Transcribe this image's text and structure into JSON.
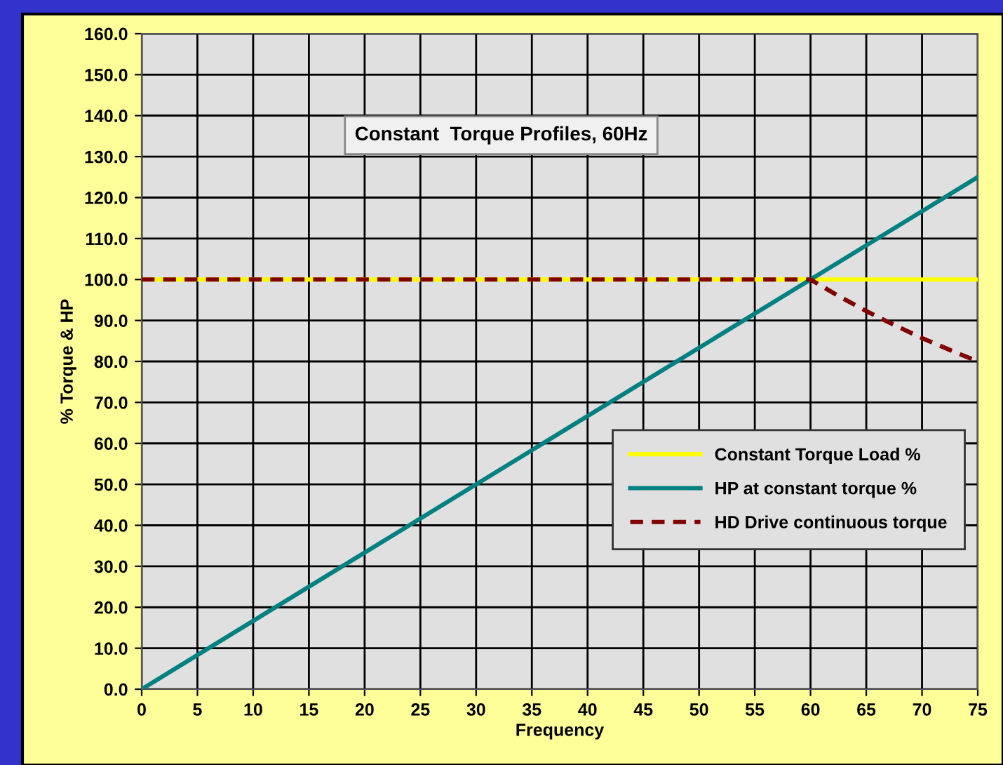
{
  "chart_data": {
    "type": "line",
    "title": "Constant  Torque Profiles, 60Hz",
    "xlabel": "Frequency",
    "ylabel": "% Torque & HP",
    "series": [
      {
        "name": "Constant Torque Load %",
        "color": "#ffff00",
        "x": [
          0,
          75
        ],
        "values": [
          100,
          100
        ],
        "line_style": "solid"
      },
      {
        "name": "HP at constant torque %",
        "color": "#008080",
        "x": [
          0,
          75
        ],
        "values": [
          0,
          125
        ],
        "line_style": "solid"
      },
      {
        "name": "HD Drive continuous torque",
        "color": "#800000",
        "x": [
          0,
          60,
          62.5,
          65,
          67.5,
          70,
          72.5,
          75
        ],
        "values": [
          100,
          100,
          96,
          92.3,
          88.9,
          85.7,
          82.8,
          80
        ],
        "line_style": "dashed"
      }
    ],
    "xlim": [
      0,
      75
    ],
    "xticks": [
      0,
      5,
      10,
      15,
      20,
      25,
      30,
      35,
      40,
      45,
      50,
      55,
      60,
      65,
      70,
      75
    ],
    "ylim": [
      0,
      160
    ],
    "yticks": [
      {
        "value": 0,
        "label": "0.0"
      },
      {
        "value": 10,
        "label": "10.0"
      },
      {
        "value": 20,
        "label": "20.0"
      },
      {
        "value": 30,
        "label": "30.0"
      },
      {
        "value": 40,
        "label": "40.0"
      },
      {
        "value": 50,
        "label": "50.0"
      },
      {
        "value": 60,
        "label": "60.0"
      },
      {
        "value": 70,
        "label": "70.0"
      },
      {
        "value": 80,
        "label": "80.0"
      },
      {
        "value": 90,
        "label": "90.0"
      },
      {
        "value": 100,
        "label": "100.0"
      },
      {
        "value": 110,
        "label": "110.0"
      },
      {
        "value": 120,
        "label": "120.0"
      },
      {
        "value": 130,
        "label": "130.0"
      },
      {
        "value": 140,
        "label": "140.0"
      },
      {
        "value": 150,
        "label": "150.0"
      },
      {
        "value": 160,
        "label": "160.0"
      }
    ],
    "grid": true,
    "legend": "bottom right",
    "marker": "none"
  }
}
